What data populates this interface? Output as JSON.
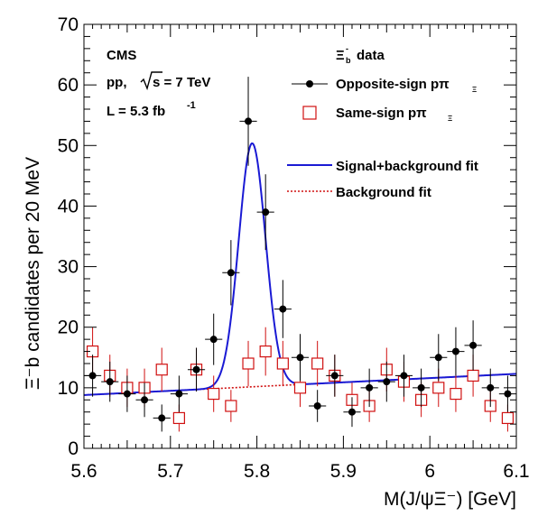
{
  "chart_data": {
    "type": "scatter",
    "title": "",
    "xlabel": "M(J/ψΞ⁻) [GeV]",
    "ylabel": "Ξ⁻b candidates per 20 MeV",
    "xlim": [
      5.6,
      6.1
    ],
    "ylim": [
      0,
      70
    ],
    "x_ticks": [
      "5.6",
      "5.7",
      "5.8",
      "5.9",
      "6",
      "6.1"
    ],
    "y_ticks": [
      "0",
      "10",
      "20",
      "30",
      "40",
      "50",
      "60",
      "70"
    ],
    "grid": false,
    "annotations": {
      "experiment": "CMS",
      "energy_prefix": "pp,",
      "energy_value": "s = 7 TeV",
      "lumi_prefix": "L = 5.3 fb",
      "lumi_exp": "-1"
    },
    "legend": {
      "placement": "top-right",
      "header": "data",
      "entries": [
        {
          "label": "Opposite-sign pπ",
          "marker": "filled-circle",
          "color": "#000000"
        },
        {
          "label": "Same-sign pπ",
          "marker": "open-square",
          "color": "#d01010"
        },
        {
          "label": "Signal+background fit",
          "marker": "line",
          "color": "#1a1ad4"
        },
        {
          "label": "Background fit",
          "marker": "dashed-line",
          "color": "#d01010"
        }
      ]
    },
    "series": [
      {
        "name": "Opposite-sign pπ",
        "color": "#000000",
        "x": [
          5.61,
          5.63,
          5.65,
          5.67,
          5.69,
          5.71,
          5.73,
          5.75,
          5.77,
          5.79,
          5.81,
          5.83,
          5.85,
          5.87,
          5.89,
          5.91,
          5.93,
          5.95,
          5.97,
          5.99,
          6.01,
          6.03,
          6.05,
          6.07,
          6.09
        ],
        "y": [
          12,
          11,
          9,
          8,
          5,
          9,
          13,
          18,
          29,
          54,
          39,
          23,
          15,
          7,
          12,
          6,
          10,
          11,
          12,
          10,
          15,
          16,
          17,
          10,
          9
        ]
      },
      {
        "name": "Same-sign pπ",
        "color": "#d01010",
        "x": [
          5.61,
          5.63,
          5.65,
          5.67,
          5.69,
          5.71,
          5.73,
          5.75,
          5.77,
          5.79,
          5.81,
          5.83,
          5.85,
          5.87,
          5.89,
          5.91,
          5.93,
          5.95,
          5.97,
          5.99,
          6.01,
          6.03,
          6.05,
          6.07,
          6.09
        ],
        "y": [
          16,
          12,
          10,
          10,
          13,
          5,
          13,
          9,
          7,
          14,
          16,
          14,
          10,
          14,
          12,
          8,
          7,
          13,
          11,
          8,
          10,
          9,
          12,
          7,
          5
        ]
      }
    ],
    "fit": {
      "signal_mean": 5.7945,
      "signal_sigma": 0.0155,
      "signal_amplitude": 40.2,
      "background_at_xmin": 8.8,
      "background_at_xmax": 12.3
    }
  }
}
